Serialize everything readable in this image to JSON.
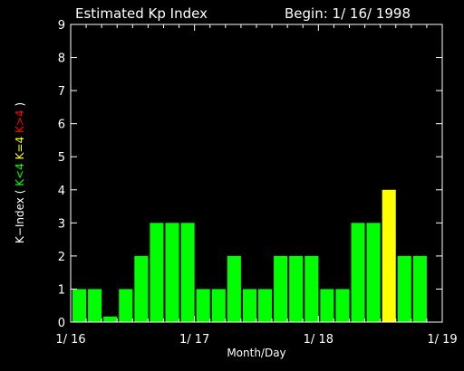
{
  "chart_data": {
    "type": "bar",
    "title": "Estimated Kp Index",
    "begin_label": "Begin: 1/ 16/ 1998",
    "xlabel": "Month/Day",
    "ylabel_parts": [
      {
        "text": "K−Index ( ",
        "color": "#ffffff"
      },
      {
        "text": "K<4",
        "color": "#00ff00"
      },
      {
        "text": "K=4",
        "color": "#ffff00"
      },
      {
        "text": "K>4",
        "color": "#ff0000"
      },
      {
        "text": " )",
        "color": "#ffffff"
      }
    ],
    "ylim": [
      0,
      9
    ],
    "yticks": [
      0,
      1,
      2,
      3,
      4,
      5,
      6,
      7,
      8,
      9
    ],
    "xlim": [
      0,
      3
    ],
    "xticks": [
      {
        "day": 0,
        "label": "1/ 16"
      },
      {
        "day": 1,
        "label": "1/ 17"
      },
      {
        "day": 2,
        "label": "1/ 18"
      },
      {
        "day": 3,
        "label": "1/ 19"
      }
    ],
    "interval_hours": 3,
    "values": [
      1,
      1,
      0.17,
      1,
      2,
      3,
      3,
      3,
      1,
      1,
      2,
      1,
      1,
      2,
      2,
      2,
      1,
      1,
      3,
      3,
      4,
      2,
      2
    ],
    "colors": {
      "below": "#00ff00",
      "equal": "#ffff00",
      "above": "#ff0000",
      "axis": "#ffffff",
      "background": "#000000"
    }
  }
}
